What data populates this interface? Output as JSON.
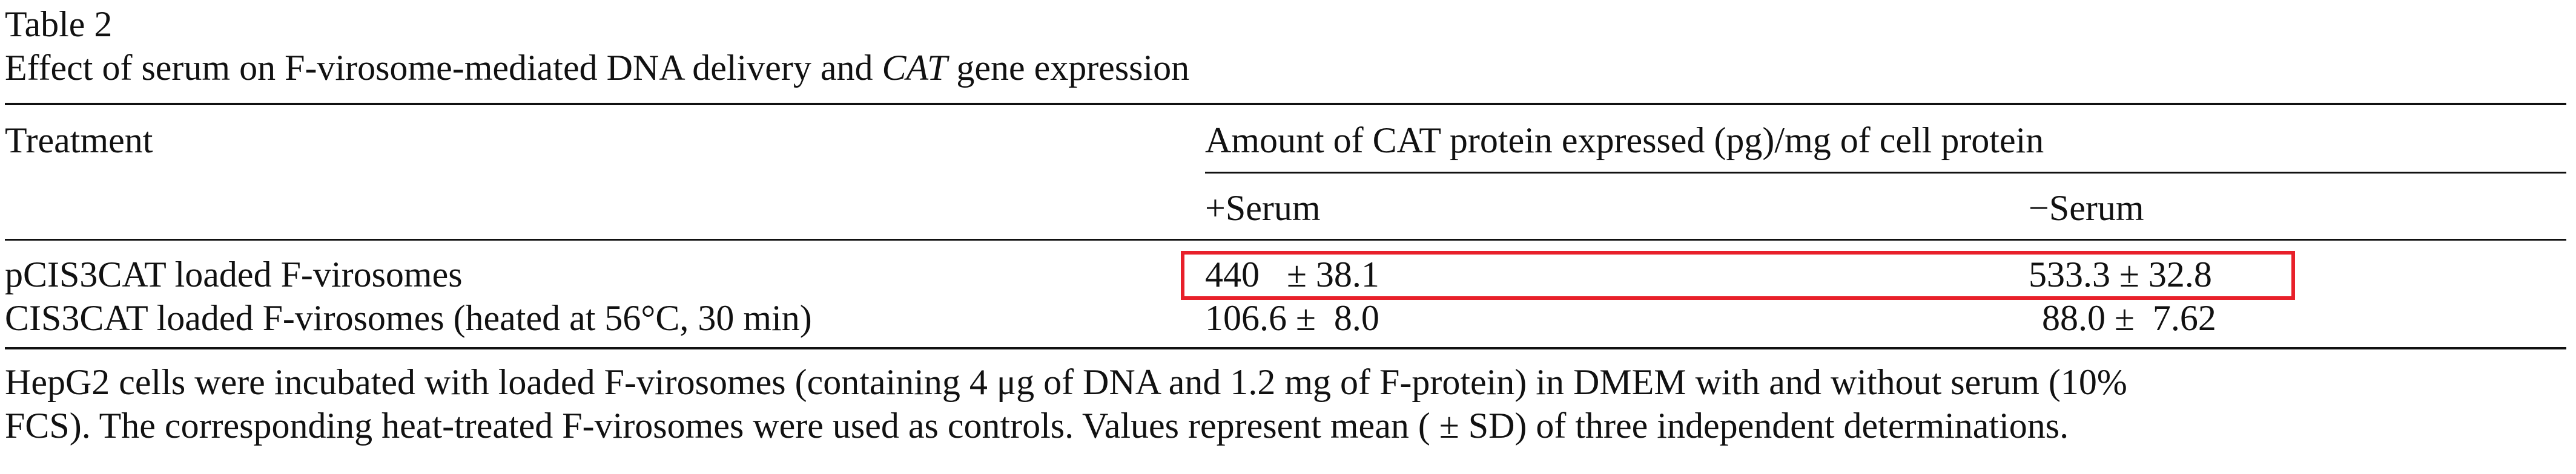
{
  "table_label": "Table 2",
  "title": {
    "part1": "Effect of serum on F-virosome-mediated DNA delivery and ",
    "italic": "CAT",
    "part2": " gene expression"
  },
  "headers": {
    "treatment": "Treatment",
    "amount": "Amount of CAT protein expressed (pg)/mg of cell protein",
    "plus_serum": "+Serum",
    "minus_serum": "−Serum"
  },
  "rows": [
    {
      "treatment": "pCIS3CAT loaded F-virosomes",
      "plus_serum": "440   ± 38.1",
      "minus_serum": "533.3 ± 32.8"
    },
    {
      "treatment": "CIS3CAT loaded F-virosomes (heated at 56°C, 30 min)",
      "plus_serum": "106.6 ±  8.0",
      "minus_serum": "88.0 ±  7.62"
    }
  ],
  "footnote": {
    "line1": "HepG2 cells were incubated with loaded F-virosomes (containing 4 μg of DNA and 1.2 mg of F-protein) in DMEM with and without serum (10%",
    "line2": "FCS). The corresponding heat-treated F-virosomes were used as controls. Values represent mean ( ± SD) of three independent determinations."
  },
  "highlight_color": "#e8202a"
}
